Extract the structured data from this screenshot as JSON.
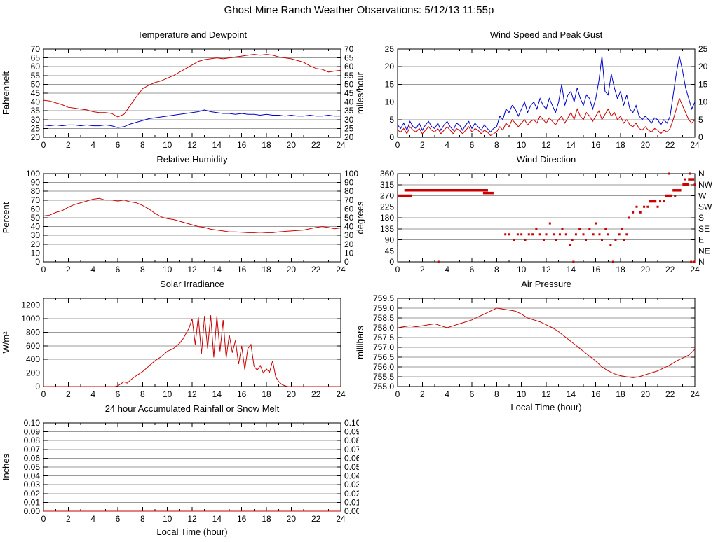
{
  "page": {
    "title": "Ghost Mine Ranch Weather Observations: 5/12/13 11:55p"
  },
  "x_axis_label": "Local Time (hour)",
  "colors": {
    "red": "#cc0000",
    "blue": "#0000cc"
  },
  "chart_data": [
    {
      "id": "temperature-dewpoint",
      "type": "line",
      "title": "Temperature and Dewpoint",
      "ylabel": "Fahrenheit",
      "xlabel": "",
      "xlim": [
        0,
        24
      ],
      "ylim": [
        20,
        70
      ],
      "grid": true,
      "legend": "none",
      "xticks": [
        0,
        2,
        4,
        6,
        8,
        10,
        12,
        14,
        16,
        18,
        20,
        22,
        24
      ],
      "yticks": [
        20,
        25,
        30,
        35,
        40,
        45,
        50,
        55,
        60,
        65,
        70
      ],
      "ytick_labels": [
        "20",
        "25",
        "30",
        "35",
        "40",
        "45",
        "50",
        "55",
        "60",
        "65",
        "70"
      ],
      "right_labels": "same",
      "series": [
        {
          "name": "Temperature",
          "color": "#cc0000",
          "y": [
            41,
            40.5,
            39.5,
            38.5,
            37,
            36.5,
            36,
            35.5,
            34.5,
            34,
            34,
            33.5,
            31.5,
            33,
            38,
            43,
            47.5,
            49.5,
            51,
            52,
            53.5,
            55,
            57,
            59,
            61,
            63,
            64,
            64.5,
            65,
            64.5,
            65,
            65.5,
            66,
            66.5,
            67,
            66.5,
            67,
            66.5,
            65.5,
            65,
            64.5,
            63.5,
            62.5,
            60.5,
            59,
            58.5,
            57,
            57.5,
            58
          ]
        },
        {
          "name": "Dewpoint",
          "color": "#0000cc",
          "y": [
            27,
            26.5,
            27,
            26.5,
            27,
            27,
            26.5,
            27,
            26.5,
            26.5,
            27,
            26.5,
            25.5,
            26,
            27.5,
            28.5,
            29.5,
            30.5,
            31,
            31.5,
            32,
            32.5,
            33,
            33.5,
            34,
            34.5,
            35.5,
            34.5,
            34,
            33.5,
            33.5,
            33,
            33.5,
            33,
            33,
            32.5,
            33,
            32.5,
            32.5,
            32,
            32.5,
            32,
            32,
            32.5,
            32,
            32,
            32.5,
            32,
            32
          ]
        }
      ]
    },
    {
      "id": "wind-speed-gust",
      "type": "line",
      "title": "Wind Speed and Peak Gust",
      "ylabel": "miles/hour",
      "xlabel": "",
      "xlim": [
        0,
        24
      ],
      "ylim": [
        0,
        25
      ],
      "grid": true,
      "legend": "none",
      "xticks": [
        0,
        2,
        4,
        6,
        8,
        10,
        12,
        14,
        16,
        18,
        20,
        22,
        24
      ],
      "yticks": [
        0,
        5,
        10,
        15,
        20,
        25
      ],
      "ytick_labels": [
        "0",
        "5",
        "10",
        "15",
        "20",
        "25"
      ],
      "right_labels": "same",
      "series": [
        {
          "name": "Peak Gust",
          "color": "#0000cc",
          "y": [
            3.5,
            2.5,
            4,
            2,
            4.5,
            3,
            2.5,
            4,
            2,
            3.5,
            4.5,
            3,
            2.5,
            4,
            2,
            3.5,
            4.5,
            3,
            2,
            4,
            3.5,
            2,
            3.5,
            4.5,
            2.5,
            4,
            3,
            2,
            3.5,
            2.5,
            1.5,
            2.5,
            3,
            6,
            5,
            8,
            7,
            9,
            8,
            6,
            8,
            10,
            7,
            9,
            10,
            8,
            11,
            9,
            8,
            11,
            9,
            7,
            10,
            15,
            9,
            12,
            13,
            10,
            14,
            11,
            9,
            12,
            11,
            8,
            11,
            16,
            23,
            13,
            12,
            18,
            14,
            11,
            13,
            9,
            12,
            8,
            7,
            9,
            6,
            5,
            6,
            5,
            4,
            5.5,
            5,
            3.5,
            5,
            4,
            6,
            12,
            18,
            23,
            19,
            14,
            11,
            8,
            10
          ]
        },
        {
          "name": "Wind Speed",
          "color": "#cc0000",
          "y": [
            2,
            1.5,
            2.5,
            1,
            3,
            2,
            1.5,
            2.5,
            1,
            2,
            3,
            2,
            1.5,
            2.5,
            1,
            2,
            3,
            2,
            1,
            2.5,
            2,
            1,
            2,
            3,
            1.5,
            2.5,
            2,
            1,
            2,
            1.5,
            0.5,
            1,
            1.5,
            3,
            2,
            4,
            3,
            5,
            4,
            3,
            4,
            5,
            3.5,
            4.5,
            5,
            4,
            6,
            5,
            4,
            5.5,
            4.5,
            3.5,
            5,
            6,
            4,
            5.5,
            7,
            5,
            8,
            6,
            5,
            7,
            6,
            4.5,
            6,
            7.5,
            5,
            6.5,
            8,
            6,
            7,
            5,
            6,
            4,
            5,
            3.5,
            3,
            4,
            2.5,
            2,
            3,
            2,
            1.5,
            2.5,
            2,
            1,
            2,
            1.5,
            2.5,
            5,
            8,
            11,
            9,
            7,
            5,
            4,
            5
          ]
        }
      ]
    },
    {
      "id": "relative-humidity",
      "type": "line",
      "title": "Relative Humidity",
      "ylabel": "Percent",
      "xlabel": "",
      "xlim": [
        0,
        24
      ],
      "ylim": [
        0,
        100
      ],
      "grid": true,
      "legend": "none",
      "xticks": [
        0,
        2,
        4,
        6,
        8,
        10,
        12,
        14,
        16,
        18,
        20,
        22,
        24
      ],
      "yticks": [
        0,
        10,
        20,
        30,
        40,
        50,
        60,
        70,
        80,
        90,
        100
      ],
      "ytick_labels": [
        "0",
        "10",
        "20",
        "30",
        "40",
        "50",
        "60",
        "70",
        "80",
        "90",
        "100"
      ],
      "right_labels": "same",
      "series": [
        {
          "name": "Relative Humidity",
          "color": "#cc0000",
          "y": [
            52,
            53,
            56,
            58,
            62,
            65,
            67,
            69,
            71,
            72,
            70,
            70,
            69,
            70,
            68,
            67,
            64,
            60,
            55,
            51,
            49,
            48,
            46,
            44,
            42,
            40,
            39,
            37,
            36,
            35,
            34,
            34,
            33.5,
            33,
            33,
            33.5,
            33,
            33,
            34,
            34.5,
            35,
            35.5,
            36,
            37.5,
            39,
            40,
            39,
            37.5,
            38.5
          ]
        }
      ]
    },
    {
      "id": "wind-direction",
      "type": "scatter",
      "title": "Wind Direction",
      "ylabel": "degrees",
      "xlabel": "",
      "xlim": [
        0,
        24
      ],
      "ylim": [
        0,
        360
      ],
      "grid": true,
      "legend": "none",
      "xticks": [
        0,
        2,
        4,
        6,
        8,
        10,
        12,
        14,
        16,
        18,
        20,
        22,
        24
      ],
      "yticks": [
        0,
        45,
        90,
        135,
        180,
        225,
        270,
        315,
        360
      ],
      "ytick_labels": [
        "0",
        "45",
        "90",
        "135",
        "180",
        "225",
        "270",
        "315",
        "360"
      ],
      "right_labels": [
        "N",
        "NE",
        "E",
        "SE",
        "S",
        "SW",
        "W",
        "NW",
        "N"
      ],
      "point_color": "#cc0000",
      "bands": [
        {
          "y": 270,
          "x0": 0,
          "x1": 1.15
        },
        {
          "y": 292,
          "x0": 0.55,
          "x1": 7.3
        },
        {
          "y": 281,
          "x0": 6.9,
          "x1": 7.75
        },
        {
          "y": 247,
          "x0": 20.3,
          "x1": 20.9
        },
        {
          "y": 270,
          "x0": 21.6,
          "x1": 22.15
        },
        {
          "y": 292,
          "x0": 22.2,
          "x1": 22.9
        },
        {
          "y": 315,
          "x0": 23.0,
          "x1": 23.5
        },
        {
          "y": 337,
          "x0": 23.45,
          "x1": 23.95
        }
      ],
      "points": [
        [
          3.3,
          0
        ],
        [
          14.2,
          0
        ],
        [
          17.4,
          0
        ],
        [
          23.7,
          0
        ],
        [
          23.95,
          0
        ],
        [
          8.7,
          112
        ],
        [
          9.0,
          112
        ],
        [
          9.4,
          90
        ],
        [
          9.7,
          112
        ],
        [
          10.0,
          112
        ],
        [
          10.3,
          90
        ],
        [
          10.6,
          112
        ],
        [
          10.9,
          112
        ],
        [
          11.2,
          135
        ],
        [
          11.5,
          112
        ],
        [
          11.8,
          90
        ],
        [
          12.0,
          112
        ],
        [
          12.3,
          157
        ],
        [
          12.6,
          112
        ],
        [
          12.8,
          90
        ],
        [
          13.1,
          112
        ],
        [
          13.3,
          135
        ],
        [
          13.6,
          112
        ],
        [
          13.9,
          67
        ],
        [
          14.1,
          90
        ],
        [
          14.4,
          112
        ],
        [
          14.7,
          135
        ],
        [
          15.0,
          112
        ],
        [
          15.2,
          90
        ],
        [
          15.5,
          135
        ],
        [
          15.8,
          112
        ],
        [
          16.0,
          157
        ],
        [
          16.3,
          112
        ],
        [
          16.5,
          90
        ],
        [
          16.8,
          135
        ],
        [
          17.0,
          112
        ],
        [
          17.2,
          67
        ],
        [
          17.6,
          90
        ],
        [
          17.9,
          112
        ],
        [
          18.1,
          135
        ],
        [
          18.3,
          90
        ],
        [
          18.5,
          112
        ],
        [
          18.7,
          180
        ],
        [
          19.0,
          202
        ],
        [
          19.3,
          225
        ],
        [
          19.6,
          202
        ],
        [
          19.9,
          225
        ],
        [
          20.2,
          225
        ],
        [
          20.6,
          247
        ],
        [
          21.0,
          225
        ],
        [
          21.2,
          247
        ],
        [
          21.5,
          247
        ],
        [
          21.9,
          360
        ],
        [
          22.4,
          270
        ],
        [
          23.2,
          337
        ],
        [
          23.6,
          360
        ],
        [
          24,
          315
        ]
      ]
    },
    {
      "id": "solar-irradiance",
      "type": "line",
      "title": "Solar Irradiance",
      "ylabel": "W/m²",
      "xlabel": "",
      "xlim": [
        0,
        24
      ],
      "ylim": [
        0,
        1300
      ],
      "grid": true,
      "legend": "none",
      "xticks": [
        0,
        2,
        4,
        6,
        8,
        10,
        12,
        14,
        16,
        18,
        20,
        22,
        24
      ],
      "yticks": [
        0,
        200,
        400,
        600,
        800,
        1000,
        1200
      ],
      "ytick_labels": [
        "0",
        "200",
        "400",
        "600",
        "800",
        "1000",
        "1200"
      ],
      "right_labels": null,
      "series": [
        {
          "name": "Solar Irradiance",
          "color": "#cc0000",
          "y": [
            0,
            0,
            0,
            0,
            0,
            0,
            0,
            0,
            0,
            0,
            0,
            0,
            0,
            0,
            0,
            0,
            0,
            0,
            0,
            0,
            0,
            0,
            0,
            0,
            10,
            40,
            70,
            50,
            90,
            130,
            160,
            190,
            220,
            260,
            300,
            340,
            380,
            410,
            440,
            480,
            520,
            540,
            560,
            600,
            640,
            700,
            780,
            860,
            1000,
            620,
            1030,
            480,
            1040,
            560,
            1050,
            430,
            1040,
            520,
            980,
            420,
            760,
            500,
            680,
            330,
            600,
            250,
            560,
            620,
            300,
            240,
            310,
            200,
            260,
            210,
            380,
            140,
            70,
            30,
            10,
            0,
            0,
            0,
            0,
            0,
            0,
            0,
            0,
            0,
            0,
            0,
            0,
            0,
            0,
            0,
            0,
            0,
            0
          ]
        }
      ]
    },
    {
      "id": "air-pressure",
      "type": "line",
      "title": "Air Pressure",
      "ylabel": "millibars",
      "xlabel": "Local Time (hour)",
      "xlim": [
        0,
        24
      ],
      "ylim": [
        755.0,
        759.5
      ],
      "grid": true,
      "legend": "none",
      "xticks": [
        0,
        2,
        4,
        6,
        8,
        10,
        12,
        14,
        16,
        18,
        20,
        22,
        24
      ],
      "yticks": [
        755.0,
        755.5,
        756.0,
        756.5,
        757.0,
        757.5,
        758.0,
        758.5,
        759.0,
        759.5
      ],
      "ytick_labels": [
        "755.0",
        "755.5",
        "756.0",
        "756.5",
        "757.0",
        "757.5",
        "758.0",
        "758.5",
        "759.0",
        "759.5"
      ],
      "right_labels": null,
      "series": [
        {
          "name": "Air Pressure",
          "color": "#cc0000",
          "y": [
            758.0,
            758.05,
            758.1,
            758.05,
            758.1,
            758.15,
            758.2,
            758.1,
            758.0,
            758.1,
            758.2,
            758.3,
            758.4,
            758.55,
            758.7,
            758.85,
            759.0,
            758.95,
            758.9,
            758.85,
            758.7,
            758.5,
            758.4,
            758.3,
            758.15,
            758.0,
            757.8,
            757.55,
            757.3,
            757.05,
            756.8,
            756.55,
            756.3,
            756.0,
            755.8,
            755.65,
            755.55,
            755.5,
            755.45,
            755.5,
            755.6,
            755.7,
            755.8,
            755.95,
            756.1,
            756.3,
            756.45,
            756.6,
            756.9
          ]
        }
      ]
    },
    {
      "id": "rainfall",
      "type": "line",
      "title": "24 hour Accumulated Rainfall or Snow Melt",
      "ylabel": "Inches",
      "xlabel": "Local Time (hour)",
      "xlim": [
        0,
        24
      ],
      "ylim": [
        0,
        0.1
      ],
      "grid": true,
      "legend": "none",
      "xticks": [
        0,
        2,
        4,
        6,
        8,
        10,
        12,
        14,
        16,
        18,
        20,
        22,
        24
      ],
      "yticks": [
        0,
        0.01,
        0.02,
        0.03,
        0.04,
        0.05,
        0.06,
        0.07,
        0.08,
        0.09,
        0.1
      ],
      "ytick_labels": [
        "0.00",
        "0.01",
        "0.02",
        "0.03",
        "0.04",
        "0.05",
        "0.06",
        "0.07",
        "0.08",
        "0.09",
        "0.10"
      ],
      "right_labels": "same",
      "series": [
        {
          "name": "Rainfall",
          "color": "#cc0000",
          "y": [
            0,
            0
          ]
        }
      ]
    }
  ]
}
